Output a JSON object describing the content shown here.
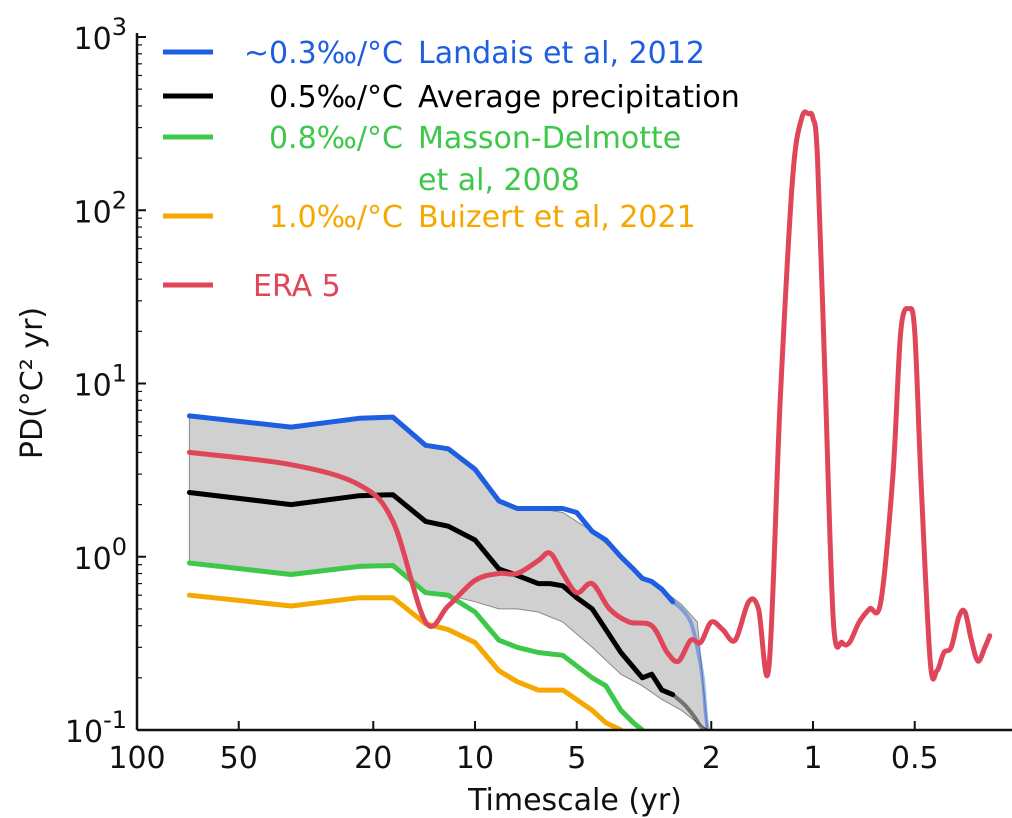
{
  "chart_data": {
    "type": "line",
    "title": "",
    "xlabel": "Timescale (yr)",
    "ylabel": "PD(°C² yr)",
    "x_scale": "reciprocal",
    "y_scale": "log",
    "xlim": [
      100,
      1.5
    ],
    "ylim": [
      0.1,
      1000
    ],
    "grid": false,
    "legend_placement": "top-left",
    "x_ticks": [
      100,
      50,
      20,
      10,
      5,
      2,
      1,
      0.5
    ],
    "x_tick_labels": [
      "100",
      "50",
      "20",
      "10",
      "5",
      "2",
      "1",
      "0.5"
    ],
    "y_ticks": [
      {
        "value": 0.1,
        "base": "10",
        "exp": "-1"
      },
      {
        "value": 1,
        "base": "10",
        "exp": "0"
      },
      {
        "value": 10,
        "base": "10",
        "exp": "1"
      },
      {
        "value": 100,
        "base": "10",
        "exp": "2"
      },
      {
        "value": 1000,
        "base": "10",
        "exp": "3"
      }
    ],
    "band": {
      "color": "#d0d0d0",
      "x": [
        70,
        35,
        22,
        17.5,
        14,
        12,
        10,
        8.5,
        7.5,
        6.5,
        5.5,
        4.5,
        3.7,
        3.2,
        2.8,
        2.45,
        2.2,
        2.05
      ],
      "upper": [
        6.5,
        5.6,
        6.3,
        6.4,
        4.4,
        4.2,
        3.2,
        2.1,
        1.9,
        1.9,
        1.8,
        1.4,
        1.0,
        0.75,
        0.65,
        0.53,
        0.42,
        0.1
      ],
      "lower": [
        0.92,
        0.79,
        0.88,
        0.89,
        0.62,
        0.6,
        0.55,
        0.5,
        0.5,
        0.48,
        0.42,
        0.3,
        0.21,
        0.18,
        0.15,
        0.13,
        0.11,
        0.1
      ]
    },
    "series": [
      {
        "name": "Landais et al, 2012",
        "rate": "~0.3‰/°C",
        "color": "#1d5fe0",
        "x": [
          70,
          35,
          22,
          17.5,
          14,
          12,
          10,
          8.5,
          7.5,
          6.5,
          5.5,
          5,
          4.5,
          4.1,
          3.7,
          3.4,
          3.2,
          3,
          2.8,
          2.6
        ],
        "y": [
          6.5,
          5.6,
          6.3,
          6.4,
          4.4,
          4.2,
          3.2,
          2.1,
          1.9,
          1.9,
          1.9,
          1.8,
          1.4,
          1.25,
          1.0,
          0.85,
          0.75,
          0.72,
          0.65,
          0.55
        ],
        "faded_x": [
          2.6,
          2.45,
          2.3,
          2.2,
          2.12,
          2.08,
          2.05
        ],
        "faded_y": [
          0.55,
          0.5,
          0.42,
          0.3,
          0.2,
          0.13,
          0.1
        ]
      },
      {
        "name": "Average precipitation",
        "rate": "0.5‰/°C",
        "color": "#000000",
        "x": [
          70,
          35,
          22,
          17.5,
          14,
          12,
          10,
          8.5,
          7.5,
          6.5,
          6,
          5.5,
          5,
          4.5,
          4.1,
          3.7,
          3.4,
          3.2,
          3,
          2.8,
          2.6
        ],
        "y": [
          2.35,
          2.0,
          2.25,
          2.28,
          1.6,
          1.5,
          1.25,
          0.85,
          0.78,
          0.7,
          0.7,
          0.68,
          0.58,
          0.5,
          0.38,
          0.28,
          0.23,
          0.2,
          0.21,
          0.17,
          0.16
        ],
        "faded_x": [
          2.6,
          2.4,
          2.25,
          2.15,
          2.08
        ],
        "faded_y": [
          0.16,
          0.14,
          0.12,
          0.105,
          0.1
        ]
      },
      {
        "name": "Masson-Delmotte et al, 2008",
        "rate": "0.8‰/°C",
        "color": "#3ec84a",
        "x": [
          70,
          35,
          22,
          17.5,
          14,
          12,
          10,
          8.5,
          7.5,
          6.5,
          5.5,
          4.5,
          4.1,
          3.7,
          3.4,
          3.2
        ],
        "y": [
          0.92,
          0.79,
          0.88,
          0.89,
          0.62,
          0.6,
          0.48,
          0.33,
          0.3,
          0.28,
          0.27,
          0.2,
          0.18,
          0.13,
          0.11,
          0.1
        ]
      },
      {
        "name": "Buizert et al, 2021",
        "rate": "1.0‰/°C",
        "color": "#f5a800",
        "x": [
          70,
          35,
          22,
          17.5,
          14,
          12,
          10,
          8.5,
          7.5,
          6.5,
          5.5,
          4.5,
          4.1,
          3.7
        ],
        "y": [
          0.6,
          0.52,
          0.58,
          0.58,
          0.41,
          0.38,
          0.32,
          0.22,
          0.19,
          0.17,
          0.17,
          0.13,
          0.11,
          0.1
        ]
      },
      {
        "name": "ERA 5",
        "rate": "",
        "color": "#e0465a",
        "x": [
          70,
          35,
          22,
          17.5,
          14,
          12,
          10,
          8.5,
          7.5,
          6.5,
          6,
          5.5,
          5,
          4.5,
          4,
          3.5,
          3,
          2.7,
          2.5,
          2.3,
          2.15,
          2,
          1.85,
          1.7,
          1.55,
          1.45,
          1.35,
          1.25,
          1.15,
          1.08,
          1.03,
          1,
          0.97,
          0.92,
          0.87,
          0.82,
          0.78,
          0.73,
          0.68,
          0.63,
          0.58,
          0.55,
          0.52,
          0.5,
          0.48,
          0.45,
          0.43,
          0.41,
          0.39,
          0.37,
          0.355,
          0.34,
          0.325,
          0.31,
          0.3
        ],
        "y": [
          4.0,
          3.4,
          2.6,
          1.6,
          0.42,
          0.52,
          0.73,
          0.8,
          0.8,
          0.95,
          1.05,
          0.8,
          0.62,
          0.7,
          0.5,
          0.42,
          0.4,
          0.28,
          0.25,
          0.33,
          0.32,
          0.42,
          0.38,
          0.33,
          0.55,
          0.5,
          0.23,
          8,
          150,
          340,
          360,
          340,
          200,
          10,
          0.42,
          0.32,
          0.32,
          0.42,
          0.5,
          0.55,
          3,
          20,
          27,
          20,
          3,
          0.25,
          0.22,
          0.28,
          0.3,
          0.45,
          0.48,
          0.33,
          0.25,
          0.3,
          0.35
        ]
      }
    ]
  }
}
